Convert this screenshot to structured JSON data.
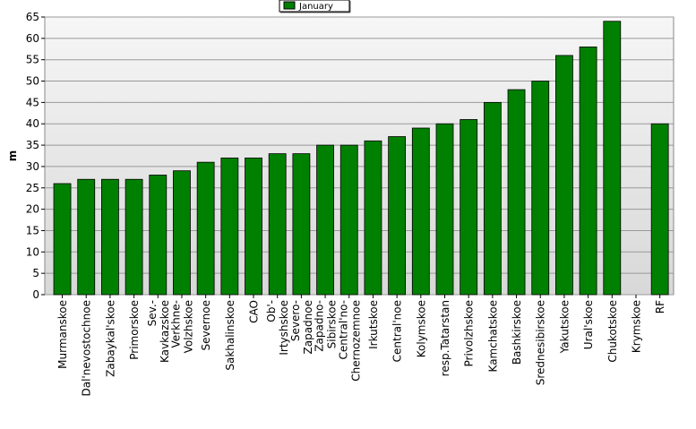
{
  "chart_data": {
    "type": "bar",
    "y_label": "m",
    "categories": [
      "Murmanskoe",
      "Dal'nevostochnoe",
      "Zabaykal'skoe",
      "Primorskoe",
      "Sev.-\nKavkazskoe",
      "Verkhne-\nVolzhskoe",
      "Severnoe",
      "Sakhalinskoe",
      "CAO",
      "Ob'-\nIrtyshskoe",
      "Severo-\nZapadnoe",
      "Zapadno-\nSibirskoe",
      "Central'no-\nChernozemnoe",
      "Irkutskoe",
      "Central'noe",
      "Kolymskoe",
      "resp.Tatarstan",
      "Privolzhskoe",
      "Kamchatskoe",
      "Bashkirskoe",
      "Srednesibirskoe",
      "Yakutskoe",
      "Ural'skoe",
      "Chukotskoe",
      "Krymskoe",
      "RF"
    ],
    "series": [
      {
        "name": "January",
        "color": "#008000",
        "values": [
          26,
          27,
          27,
          27,
          28,
          29,
          31,
          32,
          32,
          33,
          33,
          35,
          35,
          36,
          37,
          39,
          40,
          41,
          45,
          48,
          50,
          56,
          58,
          64,
          null,
          40
        ]
      }
    ],
    "ylim": [
      0,
      65
    ],
    "yticks": [
      0,
      5,
      10,
      15,
      20,
      25,
      30,
      35,
      40,
      45,
      50,
      55,
      60,
      65
    ],
    "grid": true,
    "legend": "top"
  }
}
